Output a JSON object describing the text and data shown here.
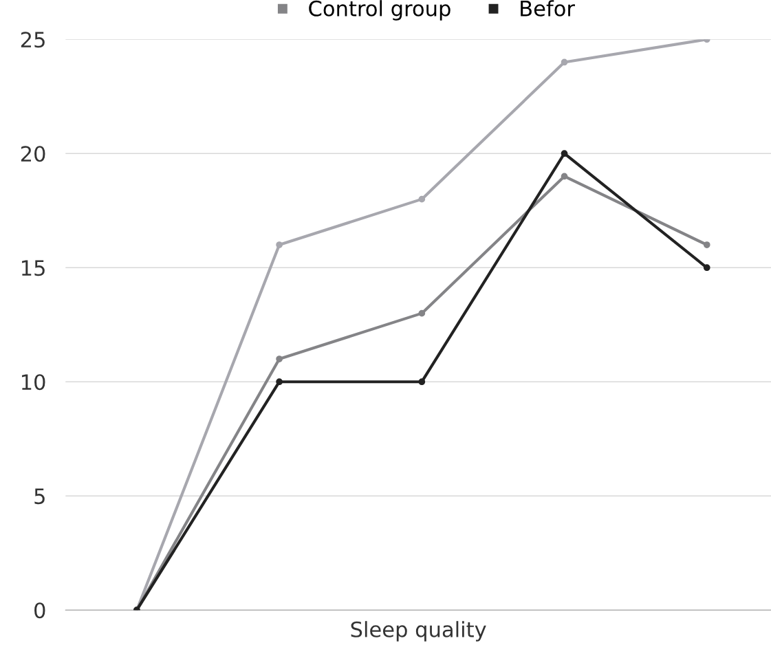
{
  "chart_data": {
    "type": "line",
    "xlabel": "Sleep quality",
    "categories": [
      null,
      null,
      null,
      null,
      null
    ],
    "series": [
      {
        "color": "#a7a7ae",
        "values": [
          0,
          16,
          18,
          24,
          25
        ]
      },
      {
        "name": "Control group",
        "color": "#848487",
        "values": [
          0,
          11,
          13,
          19,
          16
        ]
      },
      {
        "name": "Befor",
        "color": "#222222",
        "values": [
          0,
          10,
          10,
          20,
          15
        ]
      }
    ],
    "ylim": [
      0,
      25
    ],
    "yticks": [
      0,
      5,
      10,
      15,
      20,
      25
    ],
    "grid": "y",
    "legend": "top",
    "marker": "circle",
    "line_style": "solid"
  }
}
